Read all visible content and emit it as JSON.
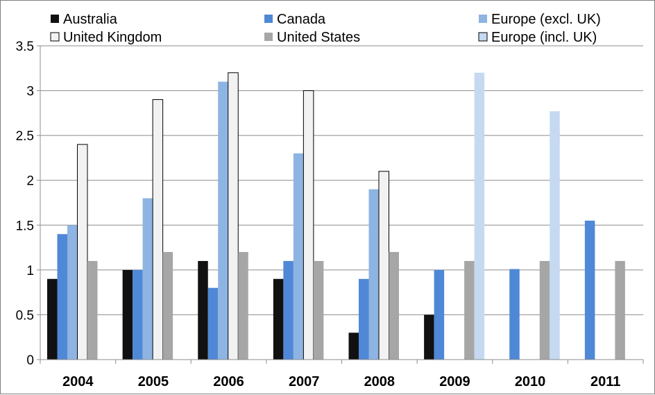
{
  "chart_data": {
    "type": "bar",
    "title": "",
    "xlabel": "",
    "ylabel": "",
    "ylim": [
      0,
      3.5
    ],
    "yticks": [
      "0",
      "0.5",
      "1",
      "1.5",
      "2",
      "2.5",
      "3",
      "3.5"
    ],
    "grid": true,
    "legend_position": "top",
    "categories": [
      "2004",
      "2005",
      "2006",
      "2007",
      "2008",
      "2009",
      "2010",
      "2011"
    ],
    "series": [
      {
        "name": "Australia",
        "color": "#111111",
        "values": [
          0.9,
          1.0,
          1.1,
          0.9,
          0.3,
          0.5,
          null,
          null
        ]
      },
      {
        "name": "Canada",
        "color": "#4f88d6",
        "values": [
          1.4,
          1.0,
          0.8,
          1.1,
          0.9,
          1.0,
          1.01,
          1.55
        ]
      },
      {
        "name": "Europe (excl. UK)",
        "color": "#8db4e2",
        "values": [
          1.5,
          1.8,
          3.1,
          2.3,
          1.9,
          null,
          null,
          null
        ]
      },
      {
        "name": "United Kingdom",
        "color": "#f2f2f2",
        "values": [
          2.4,
          2.9,
          3.2,
          3.0,
          2.1,
          null,
          null,
          null
        ]
      },
      {
        "name": "United States",
        "color": "#a6a6a6",
        "values": [
          1.1,
          1.2,
          1.2,
          1.1,
          1.2,
          1.1,
          1.1,
          1.1
        ]
      },
      {
        "name": "Europe (incl. UK)",
        "color": "#c5d9f1",
        "values": [
          null,
          null,
          null,
          null,
          null,
          3.2,
          2.77,
          null
        ]
      }
    ]
  }
}
